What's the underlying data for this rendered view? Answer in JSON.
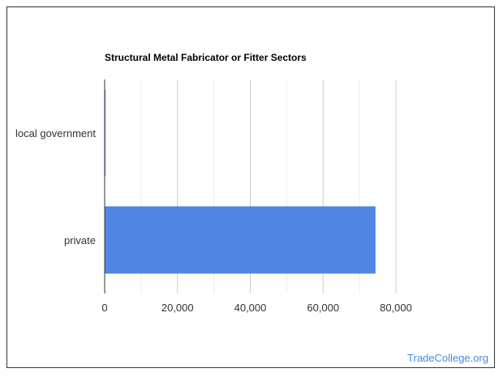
{
  "chart_data": {
    "type": "bar",
    "orientation": "horizontal",
    "title": "Structural Metal Fabricator or Fitter Sectors",
    "categories": [
      "local government",
      "private"
    ],
    "values": [
      200,
      74400
    ],
    "xlim": [
      0,
      80000
    ],
    "xticks": [
      0,
      20000,
      40000,
      60000,
      80000
    ],
    "xtick_labels": [
      "0",
      "20,000",
      "40,000",
      "60,000",
      "80,000"
    ],
    "grid": true,
    "bar_color": "#5185e3",
    "xlabel": "",
    "ylabel": ""
  },
  "watermark": "TradeCollege.org"
}
